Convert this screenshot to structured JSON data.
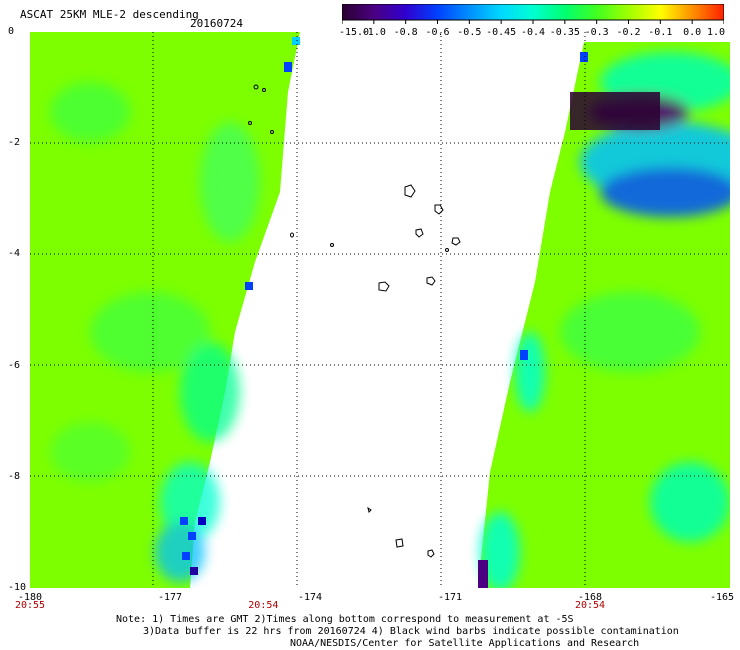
{
  "header": {
    "title": "ASCAT 25KM MLE-2 descending",
    "date": "20160724"
  },
  "colorbar": {
    "labels": [
      "-15.0",
      "-1.0",
      "-0.8",
      "-0.6",
      "-0.5",
      "-0.45",
      "-0.4",
      "-0.35",
      "-0.3",
      "-0.2",
      "-0.1",
      "0.0",
      "1.0"
    ],
    "colors": [
      "#2a0030",
      "#4a0080",
      "#3000d0",
      "#0040ff",
      "#0090ff",
      "#00d8ff",
      "#00ffd0",
      "#00ff70",
      "#40ff20",
      "#a0ff00",
      "#ffff00",
      "#ff9000",
      "#ff2000"
    ]
  },
  "axes": {
    "x_labels": [
      "-180",
      "-177",
      "-174",
      "-171",
      "-168",
      "-165"
    ],
    "y_labels": [
      "0",
      "-2",
      "-4",
      "-6",
      "-8",
      "-10"
    ],
    "xlim": [
      -180,
      -165
    ],
    "ylim": [
      -10,
      0
    ],
    "times": [
      {
        "label": "20:55",
        "lon": -180
      },
      {
        "label": "20:54",
        "lon": -175
      },
      {
        "label": "20:54",
        "lon": -168
      }
    ]
  },
  "notes": {
    "line1": "Note: 1) Times are GMT 2)Times along bottom correspond to measurement at -5S",
    "line2": "3)Data buffer is 22 hrs from 20160724 4) Black wind barbs indicate possible contamination",
    "line3": "NOAA/NESDIS/Center for Satellite Applications and Research"
  },
  "colors": {
    "land_green": "#7dff00",
    "cyan": "#00ffd0",
    "blue": "#0040ff",
    "purple": "#3a0060",
    "axis_label_red": "#b00000"
  }
}
